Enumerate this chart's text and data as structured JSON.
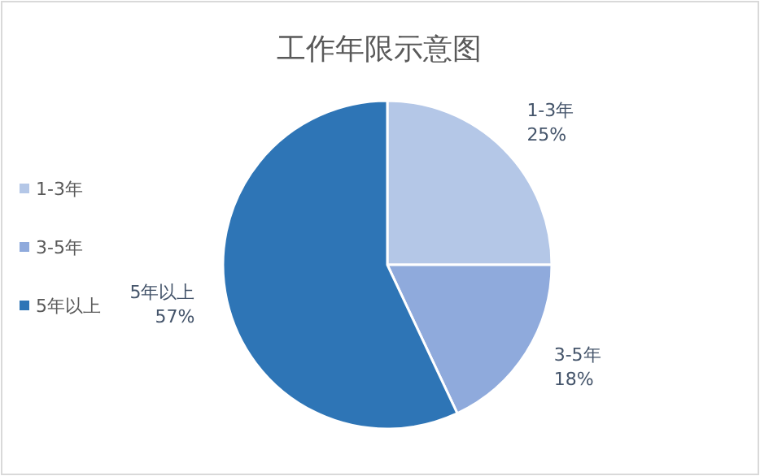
{
  "chart_data": {
    "type": "pie",
    "title": "工作年限示意图",
    "categories": [
      "1-3年",
      "3-5年",
      "5年以上"
    ],
    "values": [
      25,
      18,
      57
    ],
    "value_labels": [
      "25%",
      "18%",
      "57%"
    ],
    "colors": [
      "#b4c7e7",
      "#8faadc",
      "#2e75b6"
    ],
    "legend": "left"
  }
}
